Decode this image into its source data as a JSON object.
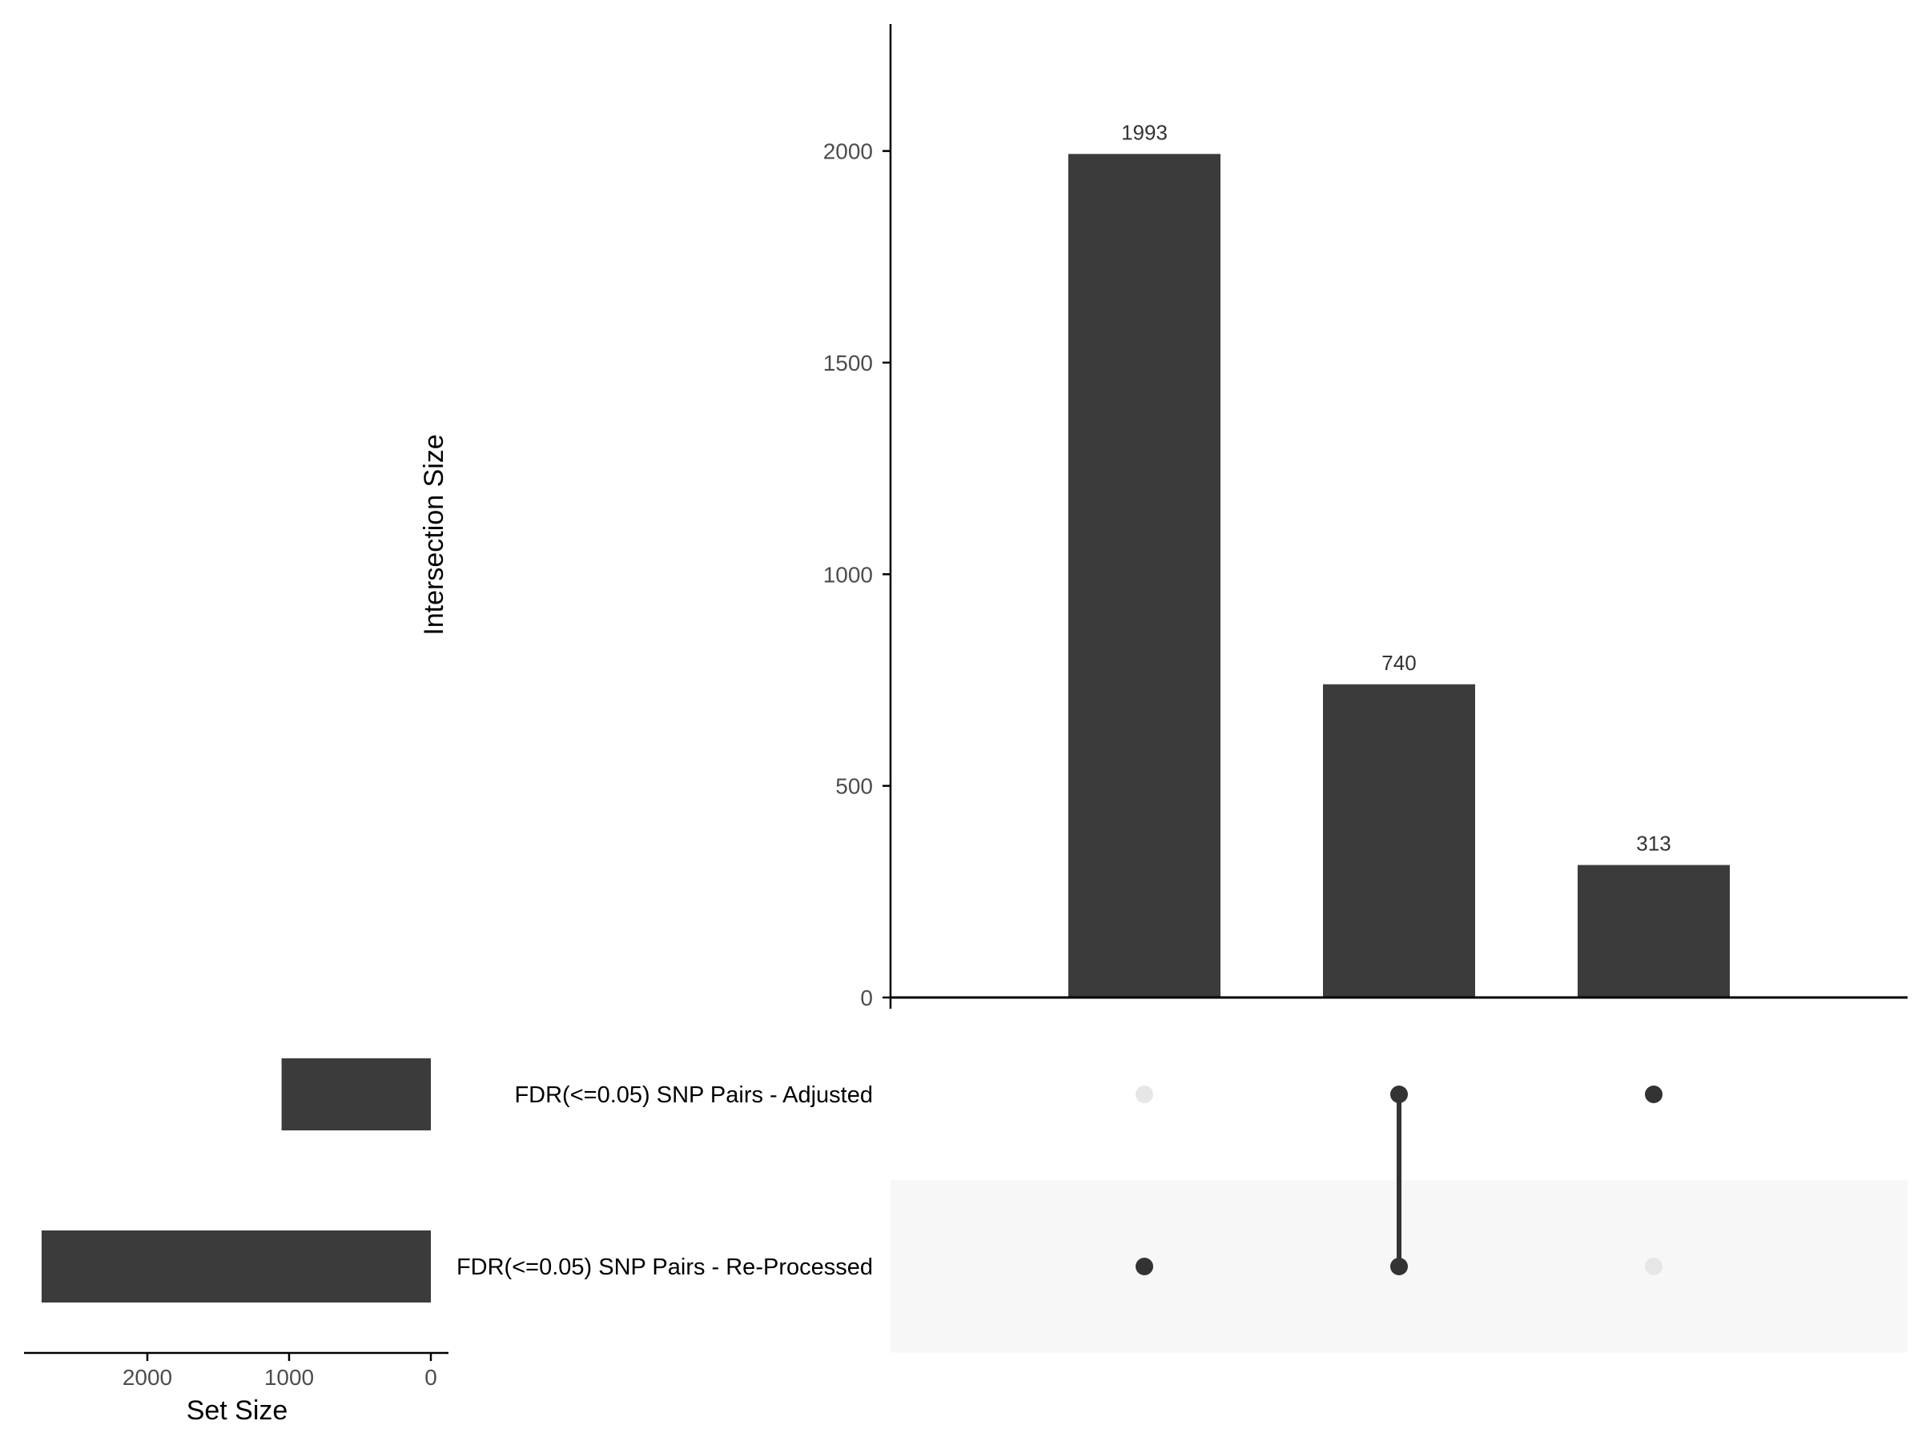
{
  "colors": {
    "bar": "#3b3b3b",
    "dot_active": "#333333",
    "dot_inactive": "#e6e6e6",
    "stripe": "#f7f7f7",
    "axis": "#000000",
    "tick_text": "#4d4d4d",
    "label_text": "#000000"
  },
  "chart_data": {
    "type": "bar",
    "subtype": "upset",
    "intersection_size": {
      "ylabel": "Intersection Size",
      "ylim": [
        0,
        2300
      ],
      "yticks": [
        0,
        500,
        1000,
        1500,
        2000
      ],
      "bars": [
        {
          "value": 1993,
          "label": "1993",
          "members": [
            false,
            true
          ]
        },
        {
          "value": 740,
          "label": "740",
          "members": [
            true,
            true
          ]
        },
        {
          "value": 313,
          "label": "313",
          "members": [
            true,
            false
          ]
        }
      ]
    },
    "sets": [
      {
        "name": "FDR(<=0.05) SNP Pairs - Adjusted",
        "size": 1053
      },
      {
        "name": "FDR(<=0.05) SNP Pairs - Re-Processed",
        "size": 2746
      }
    ],
    "set_size": {
      "xlabel": "Set Size",
      "xlim": [
        2900,
        0
      ],
      "xticks": [
        2000,
        1000,
        0
      ]
    }
  }
}
